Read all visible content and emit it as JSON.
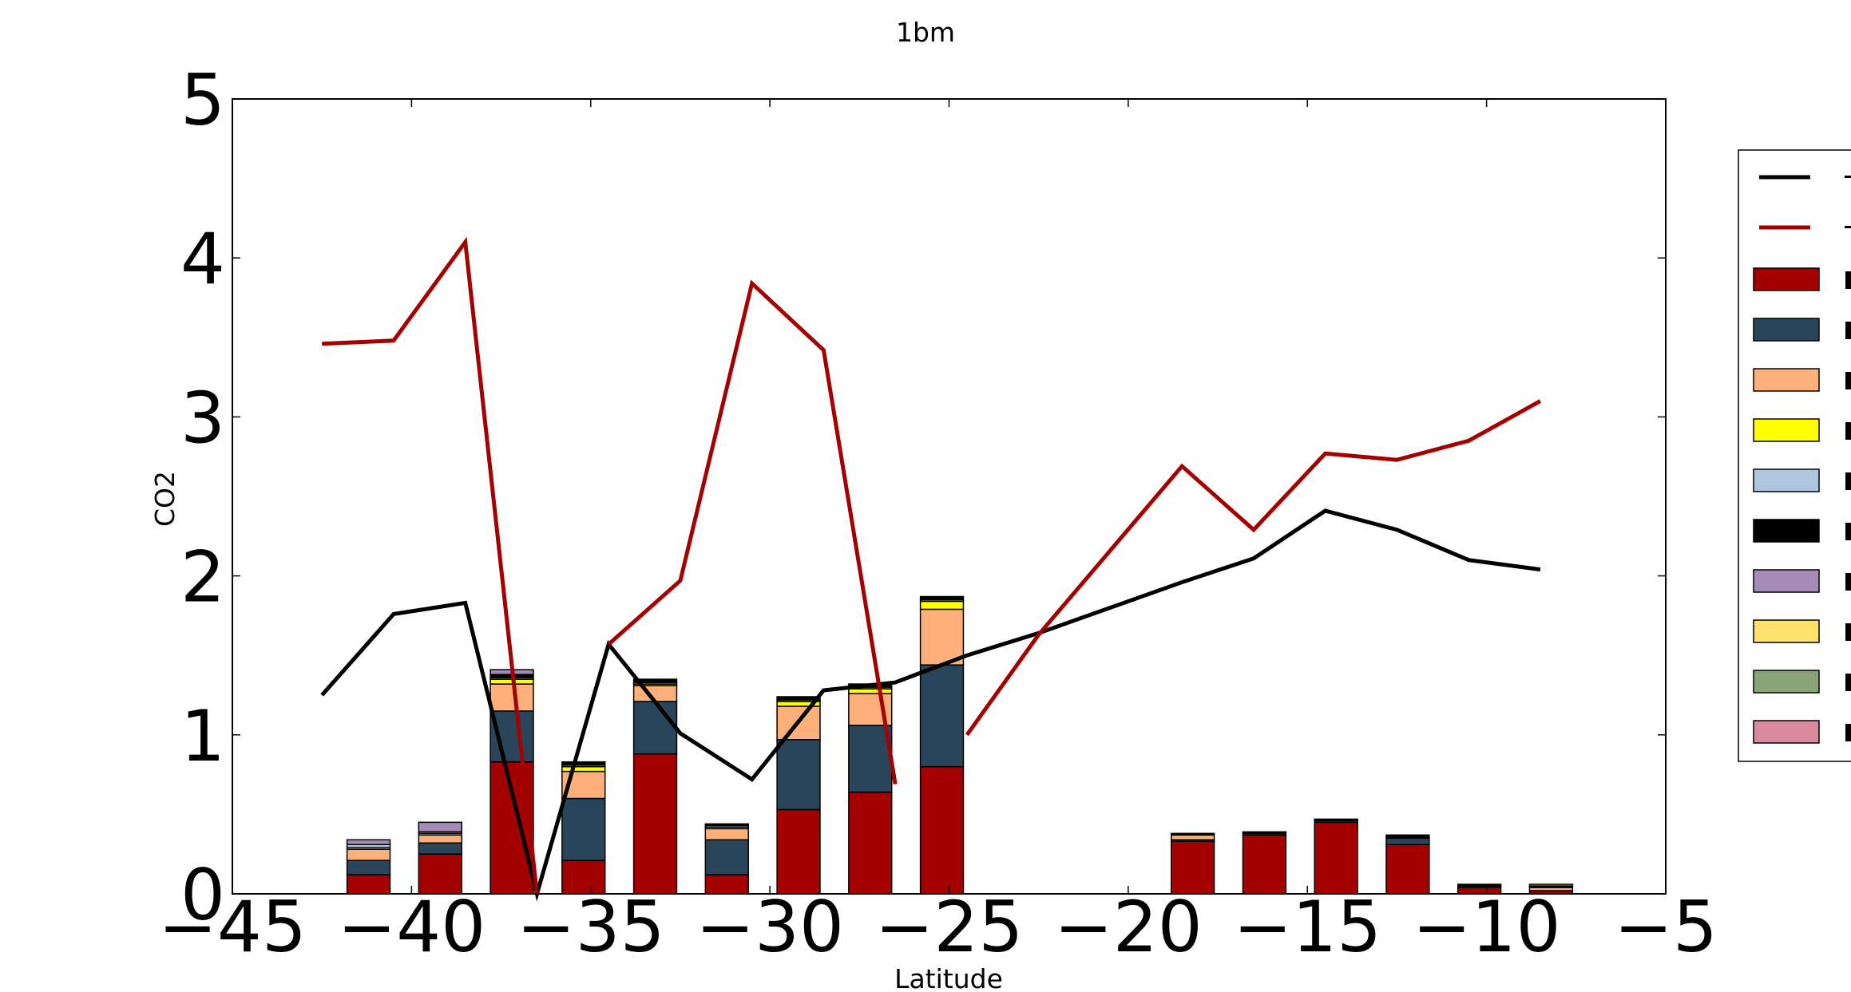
{
  "chart_data": {
    "type": "bar",
    "title": "1bm",
    "xlabel": "Latitude",
    "ylabel": "CO2",
    "xlim": [
      -45,
      -5
    ],
    "ylim": [
      0,
      5
    ],
    "xticks": [
      "−45",
      "−40",
      "−35",
      "−30",
      "−25",
      "−20",
      "−15",
      "−10",
      "−5"
    ],
    "yticks": [
      "0",
      "1",
      "2",
      "3",
      "4",
      "5"
    ],
    "grid": false,
    "legend_position": "right, partially cut off",
    "bar_width": 1.2,
    "bar_x": [
      -41.8,
      -39.8,
      -37.8,
      -35.8,
      -33.8,
      -31.8,
      -29.8,
      -27.8,
      -25.8,
      -18.8,
      -16.8,
      -14.8,
      -12.8,
      -10.8,
      -8.8
    ],
    "stacks": [
      {
        "name": "",
        "color": "#a50000",
        "values": [
          0.12,
          0.25,
          0.83,
          0.21,
          0.88,
          0.12,
          0.53,
          0.64,
          0.8,
          0.33,
          0.37,
          0.45,
          0.31,
          0.04,
          0.02
        ]
      },
      {
        "name": "",
        "color": "#2a4459",
        "values": [
          0.09,
          0.07,
          0.32,
          0.39,
          0.33,
          0.22,
          0.44,
          0.42,
          0.64,
          0.01,
          0.01,
          0.01,
          0.04,
          0.01,
          0.0
        ]
      },
      {
        "name": "",
        "color": "#fdb07a",
        "values": [
          0.07,
          0.05,
          0.17,
          0.17,
          0.1,
          0.07,
          0.21,
          0.2,
          0.35,
          0.03,
          0.0,
          0.0,
          0.0,
          0.0,
          0.02
        ]
      },
      {
        "name": "",
        "color": "#ffff00",
        "values": [
          0.01,
          0.01,
          0.03,
          0.03,
          0.01,
          0.01,
          0.03,
          0.03,
          0.05,
          0.0,
          0.0,
          0.0,
          0.0,
          0.0,
          0.0
        ]
      },
      {
        "name": "",
        "color": "#afc6df",
        "values": [
          0.02,
          0.01,
          0.01,
          0.01,
          0.01,
          0.01,
          0.01,
          0.01,
          0.01,
          0.0,
          0.0,
          0.0,
          0.0,
          0.0,
          0.0
        ]
      },
      {
        "name": "",
        "color": "#000000",
        "values": [
          0.0,
          0.0,
          0.02,
          0.02,
          0.02,
          0.01,
          0.02,
          0.02,
          0.02,
          0.01,
          0.01,
          0.01,
          0.02,
          0.01,
          0.01
        ]
      },
      {
        "name": "",
        "color": "#a68ab8",
        "values": [
          0.03,
          0.06,
          0.03,
          0.0,
          0.0,
          0.0,
          0.0,
          0.0,
          0.0,
          0.0,
          0.0,
          0.0,
          0.0,
          0.0,
          0.0
        ]
      },
      {
        "name": "",
        "color": "#ffe26d",
        "values": [
          0.0,
          0.0,
          0.0,
          0.0,
          0.0,
          0.0,
          0.0,
          0.0,
          0.0,
          0.0,
          0.0,
          0.0,
          0.0,
          0.0,
          0.01
        ]
      },
      {
        "name": "",
        "color": "#88a478",
        "values": [
          0.0,
          0.0,
          0.0,
          0.0,
          0.0,
          0.0,
          0.0,
          0.0,
          0.0,
          0.0,
          0.0,
          0.0,
          0.0,
          0.0,
          0.0
        ]
      },
      {
        "name": "",
        "color": "#d98a9c",
        "values": [
          0.0,
          0.0,
          0.0,
          0.0,
          0.0,
          0.0,
          0.0,
          0.0,
          0.0,
          0.0,
          0.0,
          0.0,
          0.0,
          0.0,
          0.0
        ]
      }
    ],
    "lines": [
      {
        "name": "",
        "color": "#000000",
        "points": [
          [
            -42.5,
            1.25
          ],
          [
            -40.5,
            1.76
          ],
          [
            -38.5,
            1.83
          ],
          [
            -36.5,
            0.0
          ],
          [
            -34.5,
            1.57
          ],
          [
            -32.5,
            1.01
          ],
          [
            -30.5,
            0.72
          ],
          [
            -28.5,
            1.28
          ],
          [
            -26.5,
            1.33
          ],
          [
            -24.5,
            1.5
          ],
          [
            -22.5,
            1.64
          ],
          [
            -20.5,
            1.8
          ],
          [
            -18.5,
            1.96
          ],
          [
            -16.5,
            2.11
          ],
          [
            -14.5,
            2.41
          ],
          [
            -12.5,
            2.29
          ],
          [
            -10.5,
            2.1
          ],
          [
            -8.5,
            2.04
          ]
        ]
      },
      {
        "name": "",
        "color": "#a50000",
        "segments": [
          [
            [
              -42.5,
              3.46
            ],
            [
              -40.5,
              3.48
            ],
            [
              -38.5,
              4.1
            ],
            [
              -36.5,
              0.0
            ]
          ],
          [
            [
              -34.5,
              1.57
            ],
            [
              -32.5,
              1.97
            ],
            [
              -30.5,
              3.84
            ],
            [
              -28.5,
              3.42
            ],
            [
              -26.5,
              0.69
            ]
          ],
          [
            [
              -24.5,
              1.0
            ],
            [
              -22.5,
              1.63
            ],
            [
              -20.5,
              2.16
            ],
            [
              -18.5,
              2.69
            ],
            [
              -16.5,
              2.29
            ],
            [
              -14.5,
              2.77
            ],
            [
              -12.5,
              2.73
            ],
            [
              -10.5,
              2.85
            ],
            [
              -8.5,
              3.1
            ]
          ]
        ]
      }
    ]
  }
}
